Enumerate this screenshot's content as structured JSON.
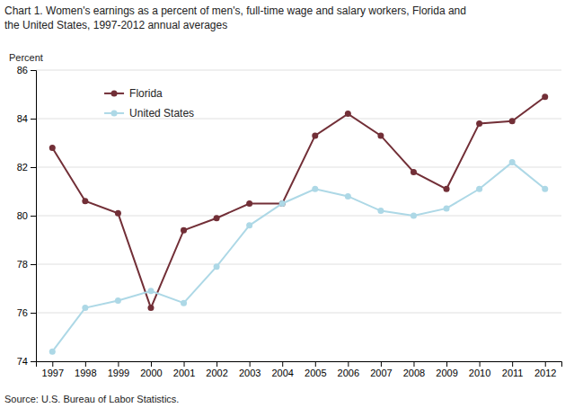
{
  "chart_data": {
    "type": "line",
    "title": "Chart 1. Women's earnings as a percent of men's, full-time wage and salary workers, Florida and\nthe United States, 1997-2012  annual averages",
    "y_label": "Percent",
    "annotations": [
      "Source: U.S. Bureau of Labor Statistics."
    ],
    "x": [
      1997,
      1998,
      1999,
      2000,
      2001,
      2002,
      2003,
      2004,
      2005,
      2006,
      2007,
      2008,
      2009,
      2010,
      2011,
      2012
    ],
    "series": [
      {
        "name": "Florida",
        "color": "#722F37",
        "marker": "circle",
        "line_style": "solid",
        "values": [
          82.8,
          80.6,
          80.1,
          76.2,
          79.4,
          79.9,
          80.5,
          80.5,
          83.3,
          84.2,
          83.3,
          81.8,
          81.1,
          83.8,
          83.9,
          84.9
        ]
      },
      {
        "name": "United States",
        "color": "#ADD8E6",
        "marker": "circle",
        "line_style": "solid",
        "values": [
          74.4,
          76.2,
          76.5,
          76.9,
          76.4,
          77.9,
          79.6,
          80.5,
          81.1,
          80.8,
          80.2,
          80.0,
          80.3,
          81.1,
          82.2,
          81.1
        ]
      }
    ],
    "xlim": [
      1996.5,
      2012.5
    ],
    "xticks": [
      1997,
      1998,
      1999,
      2000,
      2001,
      2002,
      2003,
      2004,
      2005,
      2006,
      2007,
      2008,
      2009,
      2010,
      2011,
      2012
    ],
    "ylim": [
      74,
      86
    ],
    "yticks": [
      74,
      76,
      78,
      80,
      82,
      84,
      86
    ],
    "grid": true,
    "legend": "upper left"
  }
}
